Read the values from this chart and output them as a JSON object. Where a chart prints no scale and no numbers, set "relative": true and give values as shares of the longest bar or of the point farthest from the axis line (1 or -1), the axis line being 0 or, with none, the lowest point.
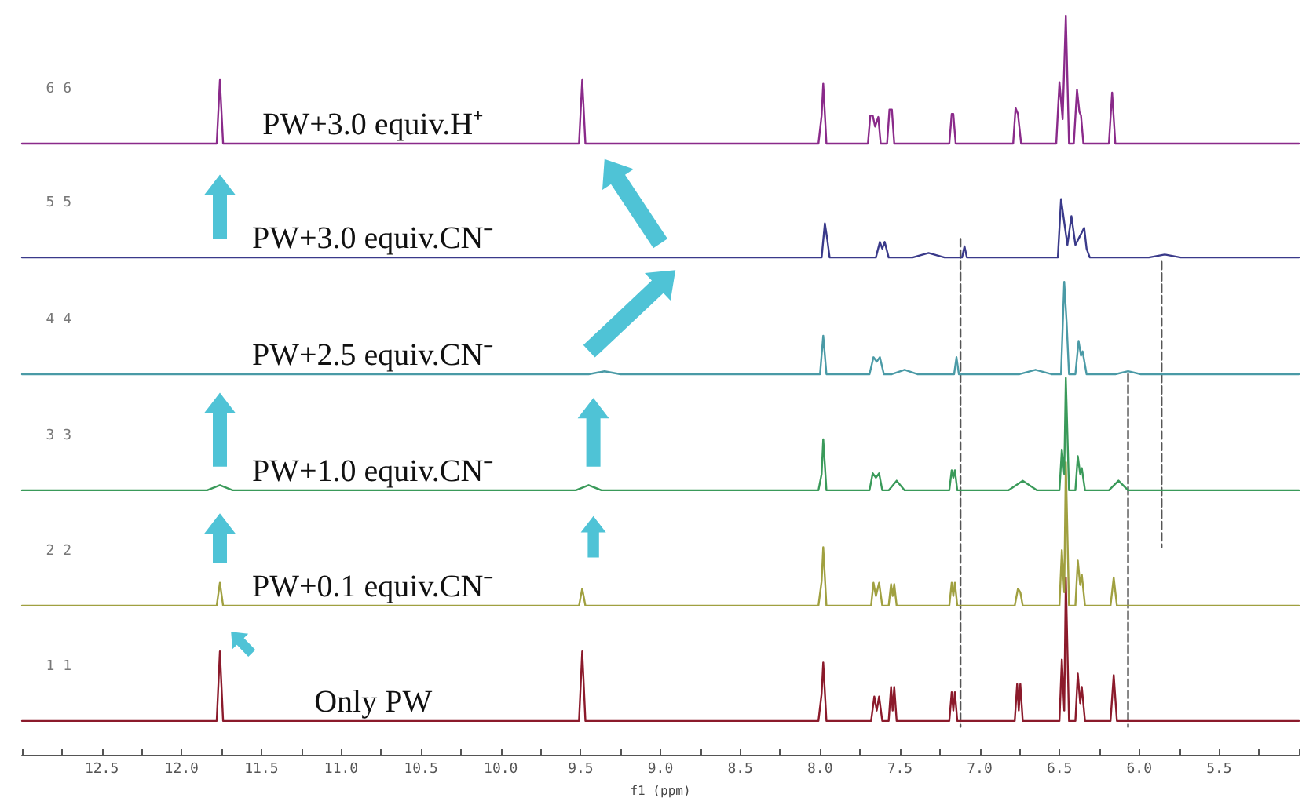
{
  "chart_data": {
    "type": "line",
    "relative": true,
    "xlabel": "f1 (ppm)",
    "xlim": [
      13,
      5
    ],
    "xticks": [
      {
        "value": 13,
        "label": null
      },
      {
        "value": 12.75,
        "label": null
      },
      {
        "value": 12.5,
        "label": "12.5"
      },
      {
        "value": 12.25,
        "label": null
      },
      {
        "value": 12,
        "label": "12.0"
      },
      {
        "value": 11.75,
        "label": null
      },
      {
        "value": 11.5,
        "label": "11.5"
      },
      {
        "value": 11.25,
        "label": null
      },
      {
        "value": 11,
        "label": "11.0"
      },
      {
        "value": 10.75,
        "label": null
      },
      {
        "value": 10.5,
        "label": "10.5"
      },
      {
        "value": 10.25,
        "label": null
      },
      {
        "value": 10,
        "label": "10.0"
      },
      {
        "value": 9.75,
        "label": null
      },
      {
        "value": 9.5,
        "label": "9.5"
      },
      {
        "value": 9.25,
        "label": null
      },
      {
        "value": 9,
        "label": "9.0"
      },
      {
        "value": 8.75,
        "label": null
      },
      {
        "value": 8.5,
        "label": "8.5"
      },
      {
        "value": 8.25,
        "label": null
      },
      {
        "value": 8,
        "label": "8.0"
      },
      {
        "value": 7.75,
        "label": null
      },
      {
        "value": 7.5,
        "label": "7.5"
      },
      {
        "value": 7.25,
        "label": null
      },
      {
        "value": 7,
        "label": "7.0"
      },
      {
        "value": 6.75,
        "label": null
      },
      {
        "value": 6.5,
        "label": "6.5"
      },
      {
        "value": 6.25,
        "label": null
      },
      {
        "value": 6,
        "label": "6.0"
      },
      {
        "value": 5.75,
        "label": null
      },
      {
        "value": 5.5,
        "label": "5.5"
      },
      {
        "value": 5.25,
        "label": null
      },
      {
        "value": 5,
        "label": null
      }
    ],
    "grid": false,
    "legend": false,
    "marker": "none",
    "line_style": "solid",
    "annotations": [
      "1 1",
      "2 2",
      "3 3",
      "4 4",
      "5 5",
      "6 6"
    ],
    "series": [
      {
        "name": "Only PW",
        "color": "#8b1a2b",
        "x": [
          13,
          11.78,
          11.76,
          11.74,
          9.51,
          9.49,
          9.47,
          8.01,
          7.99,
          7.98,
          7.96,
          7.68,
          7.66,
          7.645,
          7.63,
          7.61,
          7.57,
          7.555,
          7.545,
          7.535,
          7.52,
          7.19,
          7.175,
          7.165,
          7.155,
          7.14,
          6.78,
          6.765,
          6.755,
          6.745,
          6.73,
          6.5,
          6.485,
          6.47,
          6.46,
          6.44,
          6.4,
          6.385,
          6.37,
          6.36,
          6.34,
          6.18,
          6.16,
          6.14,
          5
        ],
        "values": [
          0.046,
          0.046,
          0.14,
          0.046,
          0.046,
          0.14,
          0.046,
          0.046,
          0.083,
          0.125,
          0.046,
          0.046,
          0.079,
          0.06,
          0.079,
          0.046,
          0.046,
          0.092,
          0.06,
          0.092,
          0.046,
          0.046,
          0.085,
          0.06,
          0.085,
          0.046,
          0.046,
          0.096,
          0.06,
          0.096,
          0.046,
          0.046,
          0.129,
          0.06,
          0.24,
          0.046,
          0.046,
          0.11,
          0.07,
          0.092,
          0.046,
          0.046,
          0.108,
          0.046,
          0.046
        ]
      },
      {
        "name": "PW+0.1 equiv.CN⁻",
        "color": "#a0a040",
        "x": [
          13,
          11.78,
          11.76,
          11.74,
          9.51,
          9.49,
          9.47,
          8.01,
          7.99,
          7.98,
          7.96,
          7.68,
          7.665,
          7.65,
          7.63,
          7.61,
          7.57,
          7.555,
          7.545,
          7.535,
          7.52,
          7.19,
          7.175,
          7.165,
          7.155,
          7.14,
          6.78,
          6.76,
          6.745,
          6.73,
          6.5,
          6.485,
          6.47,
          6.46,
          6.44,
          6.4,
          6.385,
          6.37,
          6.36,
          6.34,
          6.18,
          6.16,
          6.14,
          5
        ],
        "values": [
          0.202,
          0.202,
          0.233,
          0.202,
          0.202,
          0.225,
          0.202,
          0.202,
          0.235,
          0.281,
          0.202,
          0.202,
          0.233,
          0.215,
          0.233,
          0.202,
          0.202,
          0.231,
          0.215,
          0.231,
          0.202,
          0.202,
          0.233,
          0.215,
          0.233,
          0.202,
          0.202,
          0.225,
          0.22,
          0.202,
          0.202,
          0.277,
          0.22,
          0.396,
          0.202,
          0.202,
          0.263,
          0.23,
          0.244,
          0.202,
          0.202,
          0.24,
          0.202,
          0.202
        ]
      },
      {
        "name": "PW+1.0 equiv.CN⁻",
        "color": "#3a9a5a",
        "x": [
          13,
          11.84,
          11.76,
          11.68,
          9.53,
          9.45,
          9.37,
          8.01,
          7.99,
          7.98,
          7.96,
          7.69,
          7.67,
          7.65,
          7.63,
          7.61,
          7.57,
          7.52,
          7.47,
          7.19,
          7.175,
          7.165,
          7.155,
          7.14,
          6.82,
          6.73,
          6.64,
          6.5,
          6.485,
          6.47,
          6.46,
          6.44,
          6.4,
          6.385,
          6.37,
          6.36,
          6.34,
          6.19,
          6.13,
          6.07,
          5
        ],
        "values": [
          0.358,
          0.358,
          0.365,
          0.358,
          0.358,
          0.365,
          0.358,
          0.358,
          0.38,
          0.427,
          0.358,
          0.358,
          0.381,
          0.375,
          0.381,
          0.358,
          0.358,
          0.371,
          0.358,
          0.358,
          0.385,
          0.375,
          0.385,
          0.358,
          0.358,
          0.371,
          0.358,
          0.358,
          0.413,
          0.38,
          0.51,
          0.358,
          0.358,
          0.404,
          0.38,
          0.388,
          0.358,
          0.358,
          0.371,
          0.358,
          0.358
        ]
      },
      {
        "name": "PW+2.5 equiv.CN⁻",
        "color": "#4a9aa6",
        "x": [
          13,
          9.45,
          9.35,
          9.25,
          8,
          7.98,
          7.96,
          7.69,
          7.665,
          7.645,
          7.625,
          7.6,
          7.55,
          7.47,
          7.39,
          7.16,
          7.145,
          7.13,
          6.75,
          6.65,
          6.55,
          6.49,
          6.47,
          6.455,
          6.44,
          6.4,
          6.38,
          6.365,
          6.355,
          6.33,
          6.15,
          6.07,
          5.99,
          5
        ],
        "values": [
          0.515,
          0.515,
          0.519,
          0.515,
          0.515,
          0.567,
          0.515,
          0.515,
          0.538,
          0.532,
          0.538,
          0.515,
          0.515,
          0.521,
          0.515,
          0.515,
          0.538,
          0.515,
          0.515,
          0.521,
          0.515,
          0.515,
          0.64,
          0.585,
          0.515,
          0.515,
          0.56,
          0.54,
          0.546,
          0.515,
          0.515,
          0.519,
          0.515,
          0.515
        ]
      },
      {
        "name": "PW+3.0 equiv.CN⁻",
        "color": "#3a3a8a",
        "x": [
          13,
          7.99,
          7.97,
          7.955,
          7.94,
          7.65,
          7.625,
          7.61,
          7.595,
          7.57,
          7.42,
          7.32,
          7.22,
          7.11,
          7.095,
          7.08,
          6.51,
          6.49,
          6.465,
          6.45,
          6.425,
          6.4,
          6.345,
          6.33,
          6.31,
          5.94,
          5.84,
          5.74,
          5
        ],
        "values": [
          0.673,
          0.673,
          0.719,
          0.698,
          0.673,
          0.673,
          0.694,
          0.685,
          0.694,
          0.673,
          0.673,
          0.679,
          0.673,
          0.673,
          0.688,
          0.673,
          0.673,
          0.752,
          0.713,
          0.69,
          0.729,
          0.69,
          0.713,
          0.685,
          0.673,
          0.673,
          0.677,
          0.673,
          0.673
        ]
      },
      {
        "name": "PW+3.0 equiv.H⁺",
        "color": "#8a2a8a",
        "x": [
          13,
          11.78,
          11.76,
          11.74,
          9.51,
          9.49,
          9.47,
          8.01,
          7.99,
          7.98,
          7.96,
          7.7,
          7.685,
          7.67,
          7.655,
          7.635,
          7.62,
          7.58,
          7.565,
          7.55,
          7.535,
          7.19,
          7.175,
          7.165,
          7.15,
          6.79,
          6.775,
          6.76,
          6.74,
          6.52,
          6.5,
          6.48,
          6.46,
          6.44,
          6.41,
          6.39,
          6.375,
          6.365,
          6.35,
          6.19,
          6.17,
          6.15,
          5
        ],
        "values": [
          0.827,
          0.827,
          0.913,
          0.827,
          0.827,
          0.913,
          0.827,
          0.827,
          0.865,
          0.908,
          0.827,
          0.827,
          0.865,
          0.865,
          0.85,
          0.863,
          0.827,
          0.827,
          0.873,
          0.873,
          0.827,
          0.827,
          0.867,
          0.867,
          0.827,
          0.827,
          0.875,
          0.867,
          0.827,
          0.827,
          0.91,
          0.86,
          1,
          0.827,
          0.827,
          0.9,
          0.87,
          0.865,
          0.827,
          0.827,
          0.896,
          0.827,
          0.827
        ]
      },
      {
        "color": "#555555",
        "line_style": "dashed",
        "x": [
          7.12,
          7.12
        ],
        "values": [
          0.698,
          0.038
        ]
      },
      {
        "color": "#555555",
        "line_style": "dashed",
        "x": [
          6.07,
          6.07
        ],
        "values": [
          0.515,
          0.038
        ]
      },
      {
        "color": "#555555",
        "line_style": "dashed",
        "x": [
          5.86,
          5.86
        ],
        "values": [
          0.667,
          0.281
        ]
      }
    ]
  }
}
